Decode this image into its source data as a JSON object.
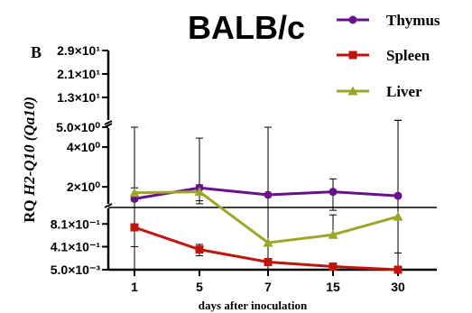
{
  "chart_data": {
    "type": "line",
    "title": "BALB/c",
    "panel_label": "B",
    "ylabel_prefix": "RQ ",
    "ylabel_italic": "H2-Q10 (Qa10)",
    "xlabel": "days after inoculation",
    "categories": [
      "1",
      "5",
      "7",
      "15",
      "30"
    ],
    "broken_axis": true,
    "segments": [
      {
        "range": [
          0.005,
          1.1
        ],
        "ticks": [
          {
            "value": 0.005,
            "label": "5.0×10⁻³"
          },
          {
            "value": 0.41,
            "label": "4.1×10⁻¹"
          },
          {
            "value": 0.81,
            "label": "8.1×10⁻¹"
          }
        ]
      },
      {
        "range": [
          1.1,
          5.0
        ],
        "ticks": [
          {
            "value": 2.0,
            "label": "2×10⁰"
          },
          {
            "value": 4.0,
            "label": "4×10⁰"
          }
        ]
      },
      {
        "range": [
          5.0,
          29.0
        ],
        "ticks": [
          {
            "value": 5.0,
            "label": "5.0×10⁰"
          },
          {
            "value": 13.0,
            "label": "1.3×10¹"
          },
          {
            "value": 21.0,
            "label": "2.1×10¹"
          },
          {
            "value": 29.0,
            "label": "2.9×10¹"
          }
        ]
      }
    ],
    "series": [
      {
        "name": "Thymus",
        "color": "#6a0f8e",
        "marker": "circle",
        "values": [
          1.4,
          1.95,
          1.6,
          1.75,
          1.55
        ],
        "err_upper": [
          5.0,
          4.45,
          5.0,
          2.4,
          5.2
        ],
        "err_lower": [
          0.01,
          1.15,
          0.01,
          1.05,
          0.01
        ]
      },
      {
        "name": "Spleen",
        "color": "#c0150f",
        "marker": "square",
        "values": [
          0.75,
          0.36,
          0.14,
          0.06,
          0.005
        ],
        "err_upper": [
          1.1,
          0.45,
          0.2,
          0.08,
          0.008
        ],
        "err_lower": [
          0.41,
          0.25,
          0.09,
          0.03,
          0.002
        ]
      },
      {
        "name": "Liver",
        "color": "#9da62a",
        "marker": "triangle",
        "values": [
          1.7,
          1.75,
          0.48,
          0.62,
          0.94
        ],
        "err_upper": [
          1.95,
          2.1,
          5.0,
          0.97,
          5.2
        ],
        "err_lower": [
          1.3,
          1.3,
          0.01,
          0.58,
          0.3
        ]
      }
    ],
    "legend_placement": "top-right",
    "grid": false
  }
}
